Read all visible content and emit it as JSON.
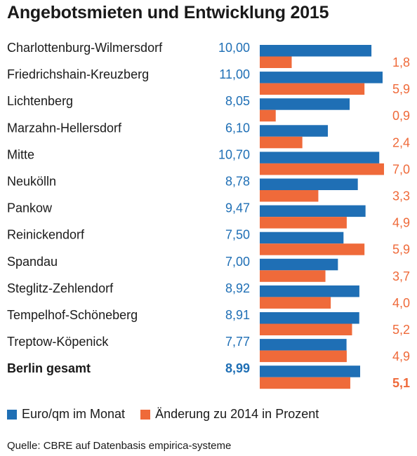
{
  "title": "Angebotsmieten und Entwicklung 2015",
  "colors": {
    "blue": "#1f6fb5",
    "orange": "#ef6a3a",
    "text": "#1a1a1a"
  },
  "chart_data": {
    "type": "bar",
    "orientation": "horizontal",
    "categories": [
      "Charlottenburg-Wilmersdorf",
      "Friedrichshain-Kreuzberg",
      "Lichtenberg",
      "Marzahn-Hellersdorf",
      "Mitte",
      "Neukölln",
      "Pankow",
      "Reinickendorf",
      "Spandau",
      "Steglitz-Zehlendorf",
      "Tempelhof-Schöneberg",
      "Treptow-Köpenick",
      "Berlin gesamt"
    ],
    "bold_categories": [
      "Berlin gesamt"
    ],
    "series": [
      {
        "name": "Euro/qm im Monat",
        "color": "#1f6fb5",
        "values": [
          10.0,
          11.0,
          8.05,
          6.1,
          10.7,
          8.78,
          9.47,
          7.5,
          7.0,
          8.92,
          8.91,
          7.77,
          8.99
        ],
        "labels": [
          "10,00",
          "11,00",
          "8,05",
          "6,10",
          "10,70",
          "8,78",
          "9,47",
          "7,50",
          "7,00",
          "8,92",
          "8,91",
          "7,77",
          "8,99"
        ],
        "axis_max": 11.0
      },
      {
        "name": "Änderung zu 2014 in Prozent",
        "color": "#ef6a3a",
        "values": [
          1.8,
          5.9,
          0.9,
          2.4,
          7.0,
          3.3,
          4.9,
          5.9,
          3.7,
          4.0,
          5.2,
          4.9,
          5.1
        ],
        "labels": [
          "1,8",
          "5,9",
          "0,9",
          "2,4",
          "7,0",
          "3,3",
          "4,9",
          "5,9",
          "3,7",
          "4,0",
          "5,2",
          "4,9",
          "5,1"
        ],
        "axis_max": 7.0
      }
    ],
    "legend_position": "bottom-left",
    "grid": false
  },
  "source": "Quelle: CBRE auf Datenbasis empirica-systeme"
}
